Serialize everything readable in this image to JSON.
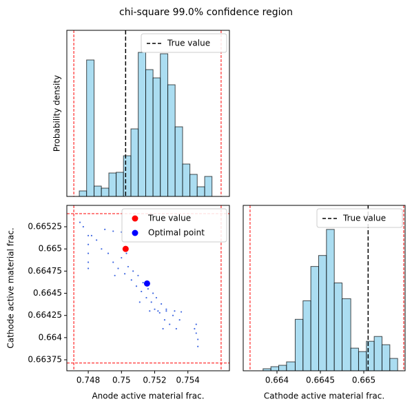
{
  "title": "chi-square 99.0% confidence region",
  "chart_data": [
    {
      "type": "histogram",
      "ylabel": "Probability density",
      "bins": [
        0.74746,
        0.7479,
        0.74835,
        0.74879,
        0.74924,
        0.74968,
        0.75012,
        0.75057,
        0.75101,
        0.75146,
        0.7519,
        0.75234,
        0.75279,
        0.75323,
        0.75368,
        0.75412,
        0.75456,
        0.75501,
        0.75545
      ],
      "values": [
        8,
        198,
        15,
        12,
        34,
        35,
        59,
        98,
        209,
        184,
        172,
        207,
        162,
        101,
        47,
        32,
        14,
        29
      ],
      "color": "#87ceeb",
      "xlim": [
        0.74671,
        0.7565
      ],
      "ylim": [
        0,
        241
      ],
      "lines": [
        {
          "name": "True value",
          "value": 0.75025,
          "color": "#000000"
        }
      ],
      "bounds": [
        0.74713,
        0.756
      ],
      "bounds_color": "#ff0000",
      "legend": "upper right"
    },
    {
      "type": "scatter",
      "xlabel": "Anode active material frac.",
      "ylabel": "Cathode active material frac.",
      "x": [
        0.748,
        0.748,
        0.748,
        0.748,
        0.748,
        0.7475,
        0.7477,
        0.7482,
        0.7485,
        0.7488,
        0.749,
        0.7495,
        0.75,
        0.7492,
        0.7495,
        0.7498,
        0.75,
        0.7502,
        0.7504,
        0.7506,
        0.7507,
        0.7509,
        0.751,
        0.7512,
        0.7513,
        0.7515,
        0.7516,
        0.7518,
        0.7519,
        0.752,
        0.7521,
        0.7523,
        0.7524,
        0.7526,
        0.7527,
        0.7529,
        0.7531,
        0.7533,
        0.7535,
        0.7517,
        0.7522,
        0.7527,
        0.7532,
        0.7536,
        0.7545,
        0.7545,
        0.7546,
        0.7546,
        0.7544,
        0.7496,
        0.7503,
        0.7511,
        0.7525
      ],
      "y": [
        0.66515,
        0.66505,
        0.66495,
        0.66485,
        0.66478,
        0.6653,
        0.66525,
        0.66515,
        0.6651,
        0.665,
        0.66522,
        0.6652,
        0.66519,
        0.66495,
        0.66485,
        0.66478,
        0.6649,
        0.66472,
        0.6648,
        0.66465,
        0.66475,
        0.66458,
        0.6647,
        0.66452,
        0.66462,
        0.66445,
        0.66455,
        0.6644,
        0.6645,
        0.66432,
        0.66445,
        0.66428,
        0.66438,
        0.6642,
        0.66432,
        0.66415,
        0.66425,
        0.6641,
        0.6642,
        0.6643,
        0.6643,
        0.6643,
        0.6643,
        0.66429,
        0.66415,
        0.66405,
        0.66398,
        0.6639,
        0.6641,
        0.6647,
        0.66495,
        0.6644,
        0.6641
      ],
      "color": "#4169e1",
      "points": [
        {
          "name": "True value",
          "x": 0.75025,
          "y": 0.665,
          "color": "#ff0000"
        },
        {
          "name": "Optimal point",
          "x": 0.75154,
          "y": 0.66461,
          "color": "#0000ff"
        }
      ],
      "xlim": [
        0.74671,
        0.7565
      ],
      "ylim": [
        0.663626,
        0.665491
      ],
      "xticks": [
        0.748,
        0.75,
        0.752,
        0.754
      ],
      "yticks": [
        0.66375,
        0.664,
        0.66425,
        0.6645,
        0.66475,
        0.665,
        0.66525
      ],
      "xbounds": [
        0.74713,
        0.756
      ],
      "ybounds": [
        0.663713,
        0.665398
      ],
      "bounds_color": "#ff0000",
      "legend": "upper right"
    },
    {
      "type": "histogram",
      "xlabel": "Cathode active material frac.",
      "bins": [
        0.66384,
        0.66393,
        0.66402,
        0.66411,
        0.66421,
        0.6643,
        0.66439,
        0.66448,
        0.66457,
        0.66466,
        0.66475,
        0.66485,
        0.66494,
        0.66503,
        0.66512,
        0.66521,
        0.6653,
        0.66539
      ],
      "values": [
        3,
        6,
        8,
        13,
        75,
        102,
        152,
        168,
        206,
        128,
        105,
        33,
        28,
        43,
        50,
        38,
        18
      ],
      "color": "#87ceeb",
      "xlim": [
        0.663611,
        0.665476
      ],
      "ylim": [
        0,
        241
      ],
      "xticks": [
        0.664,
        0.6645,
        0.665
      ],
      "lines": [
        {
          "name": "True value",
          "value": 0.66505,
          "color": "#000000"
        }
      ],
      "bounds": [
        0.66369,
        0.66546
      ],
      "bounds_color": "#ff0000",
      "legend": "upper right"
    }
  ]
}
